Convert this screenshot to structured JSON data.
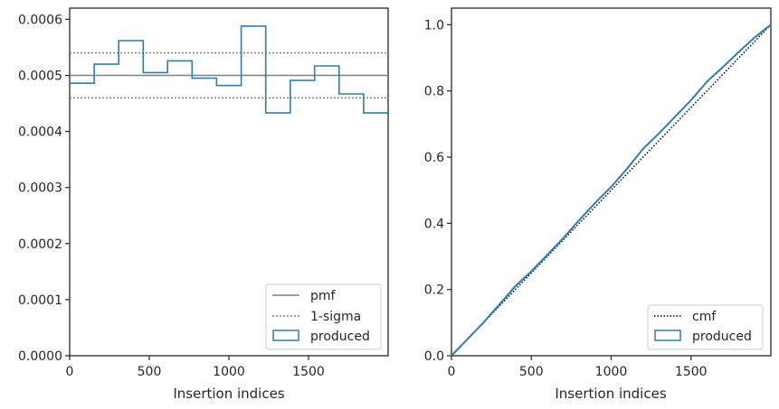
{
  "chart_data": [
    {
      "type": "step",
      "xlabel": "Insertion indices",
      "ylabel": "",
      "xlim": [
        0,
        2000
      ],
      "ylim": [
        0,
        0.00062
      ],
      "xticks": [
        {
          "v": 0,
          "label": "0"
        },
        {
          "v": 500,
          "label": "500"
        },
        {
          "v": 1000,
          "label": "1000"
        },
        {
          "v": 1500,
          "label": "1500"
        }
      ],
      "yticks": [
        {
          "v": 0,
          "label": "0.0000"
        },
        {
          "v": 0.0001,
          "label": "0.0001"
        },
        {
          "v": 0.0002,
          "label": "0.0002"
        },
        {
          "v": 0.0003,
          "label": "0.0003"
        },
        {
          "v": 0.0004,
          "label": "0.0004"
        },
        {
          "v": 0.0005,
          "label": "0.0005"
        },
        {
          "v": 0.0006,
          "label": "0.0006"
        }
      ],
      "bin_edges": [
        0,
        154,
        308,
        462,
        615,
        769,
        923,
        1077,
        1231,
        1385,
        1538,
        1692,
        1846,
        2000
      ],
      "produced": [
        0.000486,
        0.00052,
        0.000562,
        0.000505,
        0.000526,
        0.000495,
        0.000482,
        0.000588,
        0.000433,
        0.000491,
        0.000517,
        0.000467,
        0.000433
      ],
      "pmf": 0.0005,
      "sigma": [
        0.00046,
        0.00054
      ],
      "legend": {
        "position": "lower-right",
        "entries": [
          "pmf",
          "1-sigma",
          "produced"
        ]
      }
    },
    {
      "type": "line",
      "xlabel": "Insertion indices",
      "ylabel": "",
      "xlim": [
        0,
        2000
      ],
      "ylim": [
        0,
        1.05
      ],
      "xticks": [
        {
          "v": 0,
          "label": "0"
        },
        {
          "v": 500,
          "label": "500"
        },
        {
          "v": 1000,
          "label": "1000"
        },
        {
          "v": 1500,
          "label": "1500"
        }
      ],
      "yticks": [
        {
          "v": 0,
          "label": "0.0"
        },
        {
          "v": 0.2,
          "label": "0.2"
        },
        {
          "v": 0.4,
          "label": "0.4"
        },
        {
          "v": 0.6,
          "label": "0.6"
        },
        {
          "v": 0.8,
          "label": "0.8"
        },
        {
          "v": 1.0,
          "label": "1.0"
        }
      ],
      "cmf": {
        "x": [
          0,
          2000
        ],
        "y": [
          0,
          1.0
        ]
      },
      "produced": {
        "x": [
          0,
          100,
          200,
          300,
          400,
          500,
          600,
          700,
          800,
          900,
          1000,
          1100,
          1200,
          1300,
          1400,
          1500,
          1600,
          1700,
          1800,
          1900,
          2000
        ],
        "y": [
          0,
          0.05,
          0.1,
          0.155,
          0.21,
          0.255,
          0.305,
          0.355,
          0.41,
          0.462,
          0.51,
          0.565,
          0.625,
          0.672,
          0.722,
          0.772,
          0.828,
          0.872,
          0.918,
          0.962,
          1.0
        ]
      },
      "legend": {
        "position": "lower-right",
        "entries": [
          "cmf",
          "produced"
        ]
      }
    }
  ],
  "colors": {
    "produced": "#2e7ead",
    "pmf": "#808080",
    "sigma": "#808080",
    "cmf": "#000000",
    "axes": "#262626"
  }
}
